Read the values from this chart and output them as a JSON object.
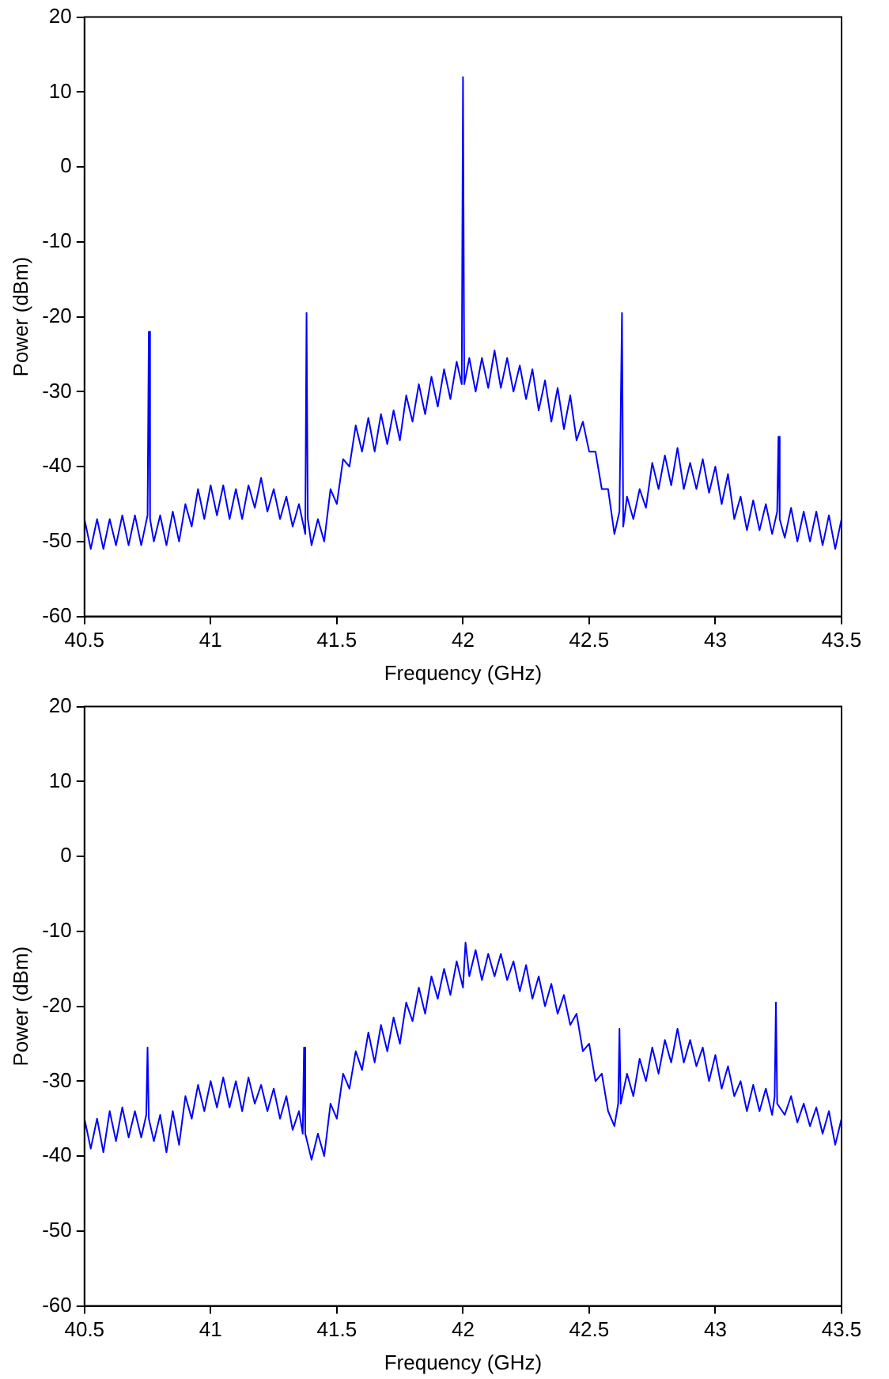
{
  "chart_data": [
    {
      "type": "line",
      "xlabel": "Frequency (GHz)",
      "ylabel": "Power (dBm)",
      "xlim": [
        40.5,
        43.5
      ],
      "ylim": [
        -60,
        20
      ],
      "xticks": [
        40.5,
        41,
        41.5,
        42,
        42.5,
        43,
        43.5
      ],
      "yticks": [
        -60,
        -50,
        -40,
        -30,
        -20,
        -10,
        0,
        10,
        20
      ],
      "x": [
        40.5,
        40.525,
        40.55,
        40.575,
        40.6,
        40.625,
        40.65,
        40.675,
        40.7,
        40.725,
        40.75,
        40.755,
        40.76,
        40.775,
        40.8,
        40.825,
        40.85,
        40.875,
        40.9,
        40.925,
        40.95,
        40.975,
        41.0,
        41.025,
        41.05,
        41.075,
        41.1,
        41.125,
        41.15,
        41.175,
        41.2,
        41.225,
        41.25,
        41.275,
        41.3,
        41.325,
        41.35,
        41.375,
        41.38,
        41.385,
        41.4,
        41.425,
        41.45,
        41.475,
        41.5,
        41.525,
        41.55,
        41.575,
        41.6,
        41.625,
        41.65,
        41.675,
        41.7,
        41.725,
        41.75,
        41.775,
        41.8,
        41.825,
        41.85,
        41.875,
        41.9,
        41.925,
        41.95,
        41.975,
        41.995,
        42.0,
        42.005,
        42.025,
        42.05,
        42.075,
        42.1,
        42.125,
        42.15,
        42.175,
        42.2,
        42.225,
        42.25,
        42.275,
        42.3,
        42.325,
        42.35,
        42.375,
        42.4,
        42.425,
        42.45,
        42.475,
        42.5,
        42.525,
        42.55,
        42.575,
        42.6,
        42.62,
        42.63,
        42.635,
        42.65,
        42.675,
        42.7,
        42.725,
        42.75,
        42.775,
        42.8,
        42.825,
        42.85,
        42.875,
        42.9,
        42.925,
        42.95,
        42.975,
        43.0,
        43.025,
        43.05,
        43.075,
        43.1,
        43.125,
        43.15,
        43.175,
        43.2,
        43.225,
        43.245,
        43.25,
        43.255,
        43.275,
        43.3,
        43.325,
        43.35,
        43.375,
        43.4,
        43.425,
        43.45,
        43.475,
        43.5
      ],
      "series": [
        {
          "color": "#0000ff",
          "values": [
            -47,
            -51,
            -47,
            -51,
            -47,
            -50.5,
            -46.5,
            -50.5,
            -46.5,
            -50.5,
            -46.5,
            -22,
            -47,
            -50,
            -46.5,
            -50.5,
            -46,
            -50,
            -45,
            -48,
            -43,
            -47,
            -42.5,
            -46.5,
            -42.5,
            -47,
            -43,
            -47,
            -42.5,
            -45.5,
            -41.5,
            -46,
            -43,
            -47,
            -44,
            -48,
            -45,
            -49,
            -19.5,
            -47,
            -50.5,
            -47,
            -50,
            -43,
            -45,
            -39,
            -40,
            -34.5,
            -38,
            -33.5,
            -38,
            -33,
            -37,
            -32.5,
            -36.5,
            -30.5,
            -34,
            -29,
            -33,
            -28,
            -32,
            -27,
            -31,
            -26,
            -29,
            12,
            -29,
            -25.5,
            -30,
            -25.5,
            -29.5,
            -24.5,
            -29.5,
            -25.5,
            -30,
            -26.5,
            -31,
            -27,
            -32.5,
            -28.5,
            -34,
            -29.5,
            -35,
            -30.5,
            -36.5,
            -34,
            -38,
            -38,
            -43,
            -43,
            -49,
            -46,
            -19.5,
            -48,
            -44,
            -47,
            -43,
            -45.5,
            -39.5,
            -43,
            -38.5,
            -42.5,
            -37.5,
            -43,
            -39.5,
            -43,
            -39,
            -43.5,
            -40,
            -45,
            -41,
            -47,
            -44,
            -48.5,
            -44.5,
            -48.5,
            -45,
            -49,
            -46,
            -36,
            -47,
            -49.5,
            -45.5,
            -50,
            -46,
            -50,
            -46,
            -50.5,
            -46.5,
            -51,
            -47
          ]
        }
      ]
    },
    {
      "type": "line",
      "xlabel": "Frequency (GHz)",
      "ylabel": "Power (dBm)",
      "xlim": [
        40.5,
        43.5
      ],
      "ylim": [
        -60,
        20
      ],
      "xticks": [
        40.5,
        41,
        41.5,
        42,
        42.5,
        43,
        43.5
      ],
      "yticks": [
        -60,
        -50,
        -40,
        -30,
        -20,
        -10,
        0,
        10,
        20
      ],
      "x": [
        40.5,
        40.525,
        40.55,
        40.575,
        40.6,
        40.625,
        40.65,
        40.675,
        40.7,
        40.725,
        40.745,
        40.75,
        40.755,
        40.775,
        40.8,
        40.825,
        40.85,
        40.875,
        40.9,
        40.925,
        40.95,
        40.975,
        41.0,
        41.025,
        41.05,
        41.075,
        41.1,
        41.125,
        41.15,
        41.175,
        41.2,
        41.225,
        41.25,
        41.275,
        41.3,
        41.325,
        41.35,
        41.365,
        41.37,
        41.375,
        41.4,
        41.425,
        41.45,
        41.475,
        41.5,
        41.525,
        41.55,
        41.575,
        41.6,
        41.625,
        41.65,
        41.675,
        41.7,
        41.725,
        41.75,
        41.775,
        41.8,
        41.825,
        41.85,
        41.875,
        41.9,
        41.925,
        41.95,
        41.975,
        42.0,
        42.01,
        42.025,
        42.05,
        42.075,
        42.1,
        42.125,
        42.15,
        42.175,
        42.2,
        42.225,
        42.25,
        42.275,
        42.3,
        42.325,
        42.35,
        42.375,
        42.4,
        42.425,
        42.45,
        42.475,
        42.5,
        42.525,
        42.55,
        42.575,
        42.6,
        42.615,
        42.62,
        42.625,
        42.65,
        42.675,
        42.7,
        42.725,
        42.75,
        42.775,
        42.8,
        42.825,
        42.85,
        42.875,
        42.9,
        42.925,
        42.95,
        42.975,
        43.0,
        43.025,
        43.05,
        43.075,
        43.1,
        43.125,
        43.15,
        43.175,
        43.2,
        43.225,
        43.235,
        43.24,
        43.245,
        43.275,
        43.3,
        43.325,
        43.35,
        43.375,
        43.4,
        43.425,
        43.45,
        43.475,
        43.5
      ],
      "series": [
        {
          "color": "#0000ff",
          "values": [
            -35,
            -39,
            -35,
            -39.5,
            -34,
            -38,
            -33.5,
            -37.5,
            -34,
            -37.5,
            -34.5,
            -25.5,
            -35,
            -38,
            -34.5,
            -39.5,
            -34,
            -38.5,
            -32,
            -35,
            -30.5,
            -34,
            -30,
            -33.5,
            -29.5,
            -33.5,
            -30,
            -34,
            -29.5,
            -33,
            -30.5,
            -34,
            -31,
            -35,
            -32,
            -36.5,
            -34,
            -37,
            -25.5,
            -37,
            -40.5,
            -37,
            -40,
            -33,
            -35,
            -29,
            -31,
            -26,
            -28.5,
            -23.5,
            -27.5,
            -22.5,
            -26,
            -21.5,
            -25,
            -19.5,
            -22,
            -17.5,
            -21,
            -16,
            -19,
            -15,
            -18.5,
            -14,
            -17.5,
            -11.5,
            -16,
            -12.5,
            -16.5,
            -13,
            -16,
            -13,
            -16.5,
            -14,
            -18,
            -14.5,
            -19,
            -16,
            -20,
            -17,
            -21,
            -18.5,
            -22.5,
            -21,
            -26,
            -25,
            -30,
            -29,
            -34,
            -36,
            -33,
            -23,
            -33,
            -29,
            -32,
            -27,
            -30,
            -25.5,
            -29,
            -24.5,
            -27.5,
            -23,
            -27.5,
            -24.5,
            -28,
            -25.5,
            -30,
            -26.5,
            -31,
            -28,
            -32,
            -30,
            -34,
            -30.5,
            -34,
            -31,
            -34.5,
            -32,
            -19.5,
            -33,
            -34.5,
            -32,
            -35.5,
            -33,
            -36,
            -33.5,
            -37,
            -34,
            -38.5,
            -35
          ]
        }
      ]
    }
  ]
}
